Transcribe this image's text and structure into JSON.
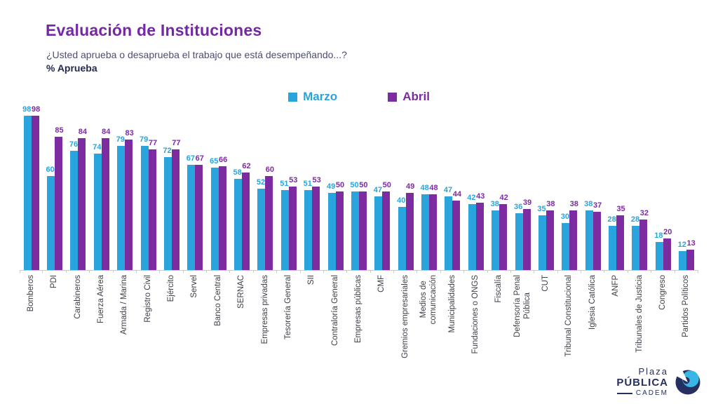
{
  "title": "Evaluación de Instituciones",
  "subtitle": "¿Usted aprueba o desaprueba el trabajo que está desempeñando...?",
  "subtitle_bold": "% Aprueba",
  "colors": {
    "marzo": "#29a4dc",
    "abril": "#7c2ba0",
    "title": "#7528a5",
    "axis_line": "#c9c9c9",
    "category_label": "#3c3f47"
  },
  "logo": {
    "line1": "Plaza",
    "line2": "PÚBLICA",
    "line3": "CADEM"
  },
  "chart_data": {
    "type": "bar",
    "title": "Evaluación de Instituciones",
    "xlabel": "",
    "ylabel": "% Aprueba",
    "ylim": [
      0,
      100
    ],
    "grid": false,
    "legend_position": "top",
    "value_labels": true,
    "categories": [
      "Bomberos",
      "PDI",
      "Carabineros",
      "Fuerza Aérea",
      "Armada / Marina",
      "Registro Civil",
      "Ejército",
      "Servel",
      "Banco Central",
      "SERNAC",
      "Empresas privadas",
      "Tesorería General",
      "SII",
      "Contraloría General",
      "Empresas públicas",
      "CMF",
      "Gremios empresariales",
      "Medios de\ncomunicación",
      "Municipalidades",
      "Fundaciones o ONGS",
      "Fiscalía",
      "Defensoría Penal\nPública",
      "CUT",
      "Tribunal Constitucional",
      "Iglesia Católica",
      "ANFP",
      "Tribunales de Justicia",
      "Congreso",
      "Partidos Políticos"
    ],
    "series": [
      {
        "name": "Marzo",
        "color": "#29a4dc",
        "values": [
          98,
          60,
          76,
          74,
          79,
          79,
          72,
          67,
          65,
          58,
          52,
          51,
          51,
          49,
          50,
          47,
          40,
          48,
          47,
          42,
          38,
          36,
          35,
          30,
          38,
          28,
          28,
          18,
          12
        ]
      },
      {
        "name": "Abril",
        "color": "#7c2ba0",
        "values": [
          98,
          85,
          84,
          84,
          83,
          77,
          77,
          67,
          66,
          62,
          60,
          53,
          53,
          50,
          50,
          50,
          49,
          48,
          44,
          43,
          42,
          39,
          38,
          38,
          37,
          35,
          32,
          20,
          13
        ]
      }
    ]
  }
}
